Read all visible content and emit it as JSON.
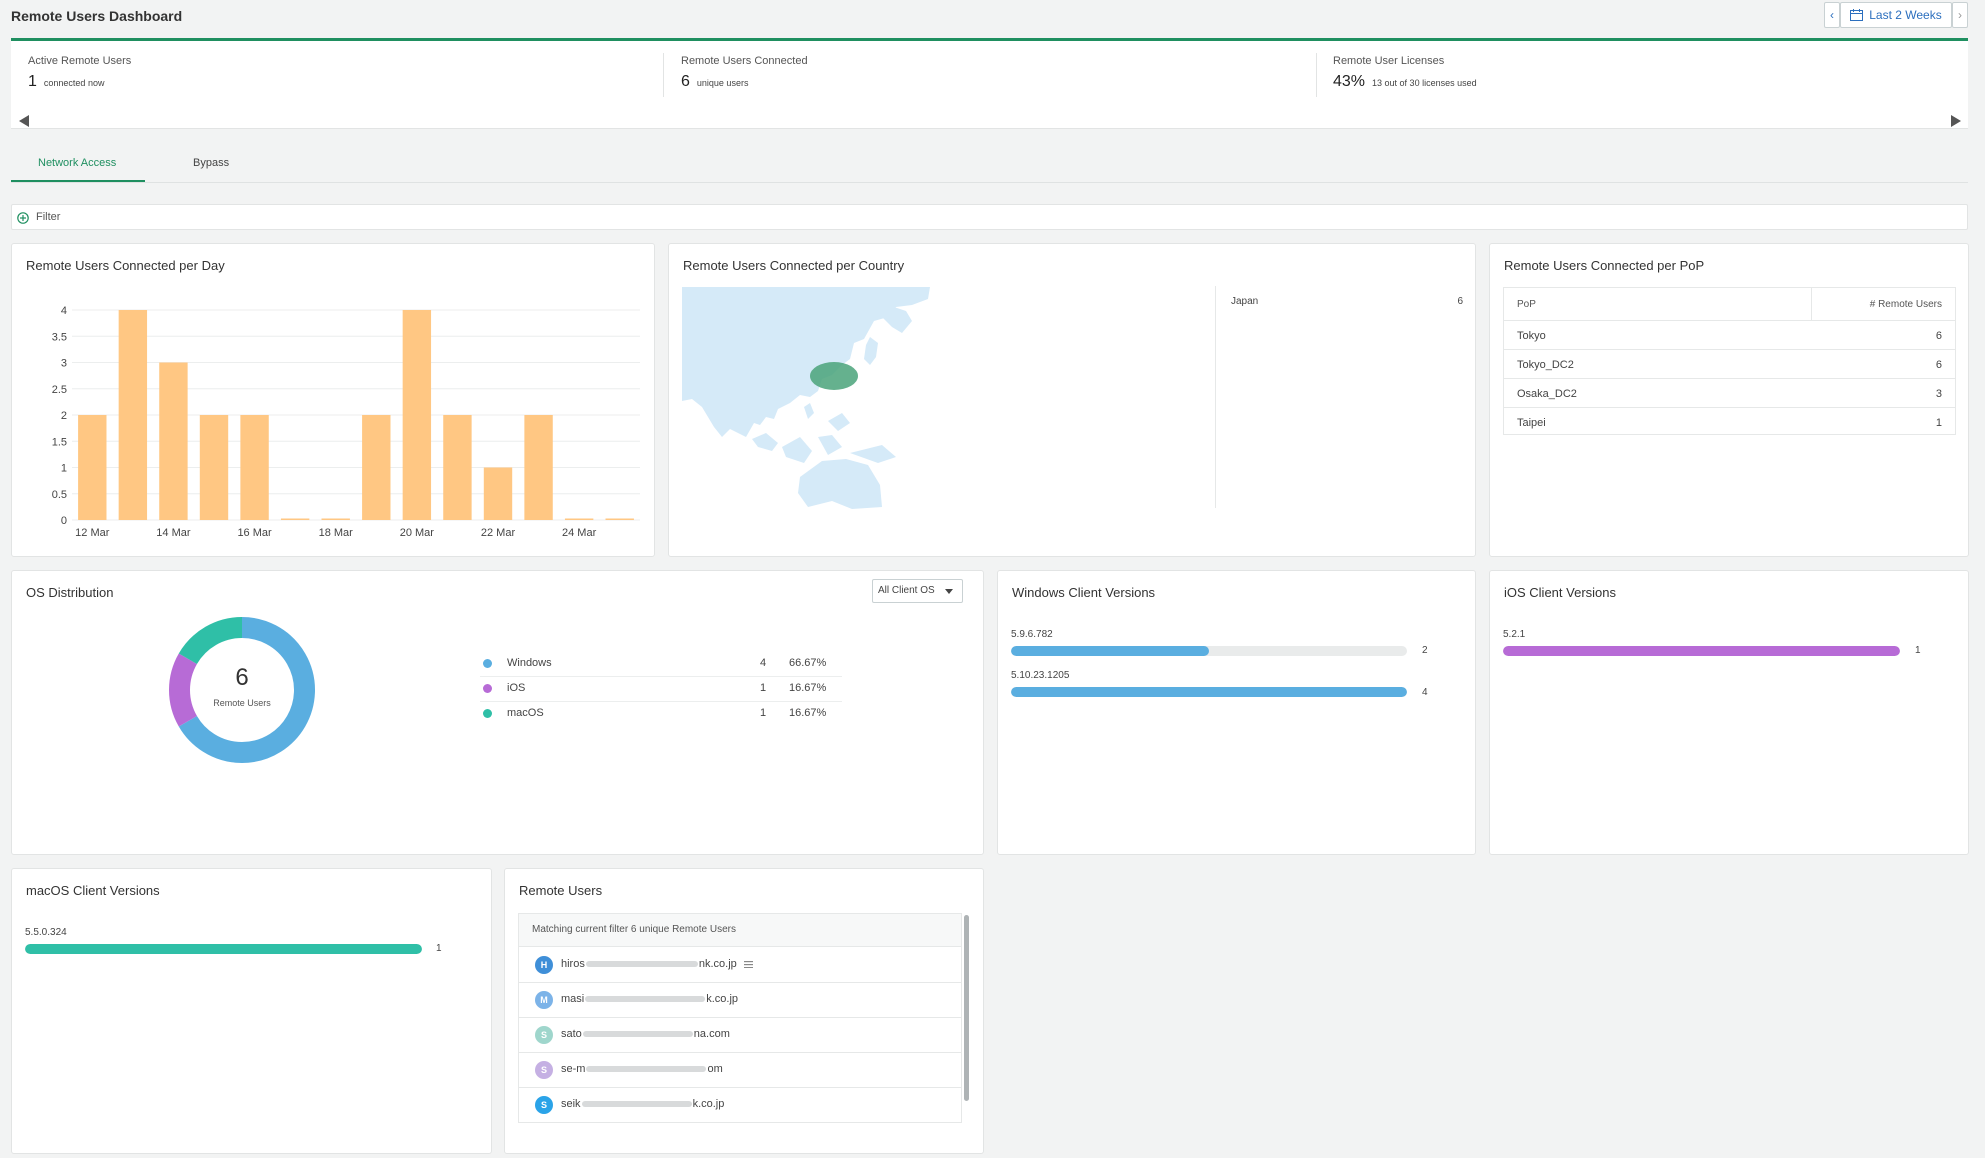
{
  "header": {
    "title": "Remote Users Dashboard",
    "date_range": "Last 2 Weeks"
  },
  "summary": {
    "active": {
      "label": "Active Remote Users",
      "value": "1",
      "sub": "connected now"
    },
    "connected": {
      "label": "Remote Users Connected",
      "value": "6",
      "sub": "unique users"
    },
    "licenses": {
      "label": "Remote User Licenses",
      "value": "43%",
      "sub": "13 out of 30 licenses used"
    }
  },
  "tabs": [
    {
      "label": "Network Access",
      "active": true
    },
    {
      "label": "Bypass",
      "active": false
    }
  ],
  "filter": {
    "label": "Filter"
  },
  "per_day": {
    "title": "Remote Users Connected per Day",
    "bar_color": "#ffc783"
  },
  "chart_data": {
    "type": "bar",
    "categories": [
      "12 Mar",
      "13 Mar",
      "14 Mar",
      "15 Mar",
      "16 Mar",
      "17 Mar",
      "18 Mar",
      "19 Mar",
      "20 Mar",
      "21 Mar",
      "22 Mar",
      "23 Mar",
      "24 Mar",
      "25 Mar"
    ],
    "x_tick_labels": [
      "12 Mar",
      "14 Mar",
      "16 Mar",
      "18 Mar",
      "20 Mar",
      "22 Mar",
      "24 Mar"
    ],
    "values": [
      2,
      4,
      3,
      2,
      2,
      0,
      0,
      2,
      4,
      2,
      1,
      2,
      0,
      0
    ],
    "y_ticks": [
      "0",
      "0.5",
      "1",
      "1.5",
      "2",
      "2.5",
      "3",
      "3.5",
      "4"
    ],
    "ylim": [
      0,
      4
    ]
  },
  "per_country": {
    "title": "Remote Users Connected per Country",
    "rows": [
      {
        "country": "Japan",
        "count": "6"
      }
    ]
  },
  "per_pop": {
    "title": "Remote Users Connected per PoP",
    "col_pop": "PoP",
    "col_count": "# Remote Users",
    "rows": [
      {
        "pop": "Tokyo",
        "count": "6"
      },
      {
        "pop": "Tokyo_DC2",
        "count": "6"
      },
      {
        "pop": "Osaka_DC2",
        "count": "3"
      },
      {
        "pop": "Taipei",
        "count": "1"
      }
    ]
  },
  "os_dist": {
    "title": "OS Distribution",
    "dropdown": "All Client OS",
    "total": "6",
    "total_label": "Remote Users",
    "items": [
      {
        "name": "Windows",
        "count": "4",
        "pct": "66.67%",
        "value": 4,
        "color": "#5aaee0"
      },
      {
        "name": "iOS",
        "count": "1",
        "pct": "16.67%",
        "value": 1,
        "color": "#b76bd6"
      },
      {
        "name": "macOS",
        "count": "1",
        "pct": "16.67%",
        "value": 1,
        "color": "#2fbfa7"
      }
    ]
  },
  "win_versions": {
    "title": "Windows Client Versions",
    "max": 4,
    "color": "#5aaee0",
    "items": [
      {
        "version": "5.9.6.782",
        "count": "2",
        "value": 2
      },
      {
        "version": "5.10.23.1205",
        "count": "4",
        "value": 4
      }
    ]
  },
  "ios_versions": {
    "title": "iOS Client Versions",
    "max": 1,
    "color": "#b76bd6",
    "items": [
      {
        "version": "5.2.1",
        "count": "1",
        "value": 1
      }
    ]
  },
  "mac_versions": {
    "title": "macOS Client Versions",
    "max": 1,
    "color": "#2fbfa7",
    "items": [
      {
        "version": "5.5.0.324",
        "count": "1",
        "value": 1
      }
    ]
  },
  "remote_users": {
    "title": "Remote Users",
    "subtitle": "Matching current filter 6 unique Remote Users",
    "users": [
      {
        "initial": "H",
        "color": "#3f8fd8",
        "start": "hiros",
        "end": "nk.co.jp"
      },
      {
        "initial": "M",
        "color": "#7cb3e8",
        "start": "masi",
        "end": "k.co.jp"
      },
      {
        "initial": "S",
        "color": "#9fd6cc",
        "start": "sato",
        "end": "na.com"
      },
      {
        "initial": "S",
        "color": "#c5b0e3",
        "start": "se-m",
        "end": "om"
      },
      {
        "initial": "S",
        "color": "#2aa3e8",
        "start": "seik",
        "end": "k.co.jp"
      }
    ]
  }
}
